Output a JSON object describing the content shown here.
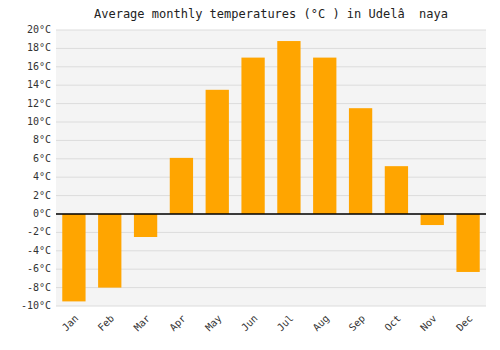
{
  "chart_data": {
    "type": "bar",
    "title": "Average monthly temperatures (°C ) in Udelâ  naya",
    "categories": [
      "Jan",
      "Feb",
      "Mar",
      "Apr",
      "May",
      "Jun",
      "Jul",
      "Aug",
      "Sep",
      "Oct",
      "Nov",
      "Dec"
    ],
    "values": [
      -9.5,
      -8.0,
      -2.5,
      6.1,
      13.5,
      17.0,
      18.8,
      17.0,
      11.5,
      5.2,
      -1.2,
      -6.3
    ],
    "color": "#FFA500",
    "ylim": [
      -10,
      20
    ],
    "yticks": [
      {
        "value": -10,
        "label": "-10°C"
      },
      {
        "value": -8,
        "label": "-8°C"
      },
      {
        "value": -6,
        "label": "-6°C"
      },
      {
        "value": -4,
        "label": "-4°C"
      },
      {
        "value": -2,
        "label": "-2°C"
      },
      {
        "value": 0,
        "label": "0°C"
      },
      {
        "value": 2,
        "label": "2°C"
      },
      {
        "value": 4,
        "label": "4°C"
      },
      {
        "value": 6,
        "label": "6°C"
      },
      {
        "value": 8,
        "label": "8°C"
      },
      {
        "value": 10,
        "label": "10°C"
      },
      {
        "value": 12,
        "label": "12°C"
      },
      {
        "value": 14,
        "label": "14°C"
      },
      {
        "value": 16,
        "label": "16°C"
      },
      {
        "value": 18,
        "label": "18°C"
      },
      {
        "value": 20,
        "label": "20°C"
      }
    ],
    "grid": true
  }
}
